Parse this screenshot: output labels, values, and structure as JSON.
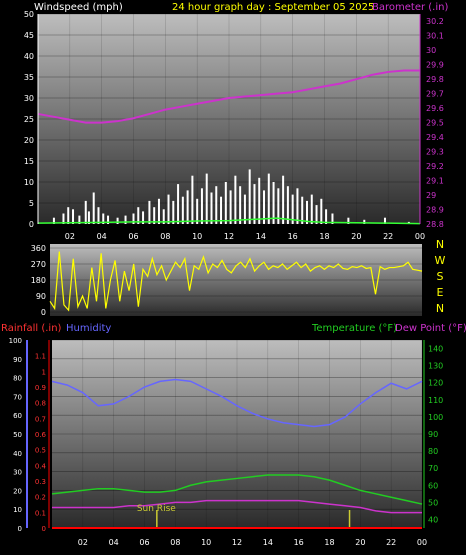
{
  "header": {
    "windspeed_label": "Windspeed (mph)",
    "title": "24 hour graph day : September 05 2025",
    "barometer_label": "Barometer (.in)"
  },
  "direction": {
    "ticks": [
      "360",
      "270",
      "180",
      "90",
      "0"
    ],
    "compass": [
      "N",
      "W",
      "S",
      "E",
      "N"
    ]
  },
  "lower_labels": {
    "rainfall": "Rainfall (.in)",
    "humidity": "Humidity",
    "temperature": "Temperature (°F)",
    "dew_point": "Dew Point (°F)"
  },
  "annotations": {
    "sunrise": "Sun Rise"
  },
  "x_ticks": [
    "02",
    "04",
    "06",
    "08",
    "10",
    "12",
    "14",
    "16",
    "18",
    "20",
    "22",
    "00"
  ],
  "colors": {
    "windspeed": "#ffffff",
    "wind_avg": "#33ff33",
    "barometer": "#cc33cc",
    "direction": "#ffff00",
    "humidity": "#6666ff",
    "temperature": "#22cc22",
    "dew_point": "#cc33cc",
    "rainfall": "#ff0000",
    "sunrise": "#cccc33",
    "title": "#ffff00"
  },
  "chart_data": [
    {
      "type": "bar",
      "name": "windspeed",
      "ylabel": "Windspeed (mph)",
      "ylim": [
        0,
        50
      ],
      "yticks": [
        0,
        5,
        10,
        15,
        20,
        25,
        30,
        35,
        40,
        45,
        50
      ],
      "x_range_hours": [
        0,
        24
      ],
      "gusts": [
        [
          1.0,
          1.5
        ],
        [
          1.6,
          2.5
        ],
        [
          1.9,
          4.0
        ],
        [
          2.2,
          3.5
        ],
        [
          2.6,
          2.0
        ],
        [
          3.0,
          5.5
        ],
        [
          3.2,
          3.0
        ],
        [
          3.5,
          7.5
        ],
        [
          3.8,
          4.0
        ],
        [
          4.1,
          2.5
        ],
        [
          4.4,
          2.0
        ],
        [
          5.0,
          1.5
        ],
        [
          5.5,
          2.0
        ],
        [
          6.0,
          2.5
        ],
        [
          6.3,
          4.0
        ],
        [
          6.6,
          3.0
        ],
        [
          7.0,
          5.5
        ],
        [
          7.3,
          4.0
        ],
        [
          7.6,
          6.0
        ],
        [
          7.9,
          3.5
        ],
        [
          8.2,
          7.0
        ],
        [
          8.5,
          5.5
        ],
        [
          8.8,
          9.5
        ],
        [
          9.1,
          6.5
        ],
        [
          9.4,
          8.0
        ],
        [
          9.7,
          11.5
        ],
        [
          10.0,
          6.0
        ],
        [
          10.3,
          8.5
        ],
        [
          10.6,
          12.0
        ],
        [
          10.9,
          7.5
        ],
        [
          11.2,
          9.0
        ],
        [
          11.5,
          6.5
        ],
        [
          11.8,
          10.0
        ],
        [
          12.1,
          8.0
        ],
        [
          12.4,
          11.5
        ],
        [
          12.7,
          9.0
        ],
        [
          13.0,
          7.0
        ],
        [
          13.3,
          13.0
        ],
        [
          13.6,
          9.5
        ],
        [
          13.9,
          11.0
        ],
        [
          14.2,
          8.0
        ],
        [
          14.5,
          12.0
        ],
        [
          14.8,
          10.0
        ],
        [
          15.1,
          8.5
        ],
        [
          15.4,
          11.5
        ],
        [
          15.7,
          9.0
        ],
        [
          16.0,
          7.0
        ],
        [
          16.3,
          8.5
        ],
        [
          16.6,
          6.5
        ],
        [
          16.9,
          5.5
        ],
        [
          17.2,
          7.0
        ],
        [
          17.5,
          4.5
        ],
        [
          17.8,
          6.0
        ],
        [
          18.1,
          3.5
        ],
        [
          18.5,
          2.5
        ],
        [
          19.5,
          1.5
        ],
        [
          20.5,
          1.0
        ],
        [
          21.8,
          1.5
        ],
        [
          23.3,
          0.5
        ]
      ],
      "average": [
        [
          0,
          0.2
        ],
        [
          2,
          0.3
        ],
        [
          4,
          0.4
        ],
        [
          6,
          0.5
        ],
        [
          8,
          0.5
        ],
        [
          10,
          0.7
        ],
        [
          12,
          0.8
        ],
        [
          13,
          1.0
        ],
        [
          14,
          1.2
        ],
        [
          15,
          1.4
        ],
        [
          16,
          1.0
        ],
        [
          17,
          0.6
        ],
        [
          18,
          0.4
        ],
        [
          20,
          0.3
        ],
        [
          22,
          0.2
        ],
        [
          24,
          0.1
        ]
      ]
    },
    {
      "type": "line",
      "name": "barometer",
      "ylabel": "Barometer (.in)",
      "ylim": [
        28.8,
        30.25
      ],
      "yticks": [
        28.8,
        28.9,
        29,
        29.1,
        29.2,
        29.3,
        29.4,
        29.5,
        29.6,
        29.7,
        29.8,
        29.9,
        30,
        30.1,
        30.2
      ],
      "x": [
        0,
        1,
        2,
        3,
        4,
        5,
        6,
        7,
        8,
        9,
        10,
        11,
        12,
        13,
        14,
        15,
        16,
        17,
        18,
        19,
        20,
        21,
        22,
        23,
        24
      ],
      "y": [
        29.56,
        29.54,
        29.52,
        29.5,
        29.5,
        29.51,
        29.53,
        29.56,
        29.59,
        29.61,
        29.63,
        29.65,
        29.67,
        29.68,
        29.69,
        29.7,
        29.71,
        29.73,
        29.75,
        29.77,
        29.8,
        29.83,
        29.85,
        29.86,
        29.86
      ]
    },
    {
      "type": "line",
      "name": "wind direction",
      "ylim": [
        0,
        360
      ],
      "yticks": [
        0,
        90,
        180,
        270,
        360
      ],
      "x": [
        0,
        0.3,
        0.6,
        0.9,
        1.2,
        1.5,
        1.8,
        2.1,
        2.4,
        2.7,
        3.0,
        3.3,
        3.6,
        3.9,
        4.2,
        4.5,
        4.8,
        5.1,
        5.4,
        5.7,
        6.0,
        6.3,
        6.6,
        6.9,
        7.2,
        7.5,
        7.8,
        8.1,
        8.4,
        8.7,
        9.0,
        9.3,
        9.6,
        9.9,
        10.2,
        10.5,
        10.8,
        11.1,
        11.4,
        11.7,
        12.0,
        12.3,
        12.6,
        12.9,
        13.2,
        13.5,
        13.8,
        14.1,
        14.4,
        14.7,
        15.0,
        15.3,
        15.6,
        15.9,
        16.2,
        16.5,
        16.8,
        17.1,
        17.4,
        17.7,
        18.0,
        18.3,
        18.6,
        18.9,
        19.2,
        19.5,
        19.8,
        20.1,
        20.4,
        20.7,
        21.0,
        21.3,
        21.6,
        21.9,
        22.2,
        22.5,
        22.8,
        23.1,
        23.4,
        23.7,
        24.0
      ],
      "y": [
        60,
        20,
        340,
        40,
        10,
        300,
        30,
        90,
        20,
        250,
        60,
        330,
        20,
        180,
        290,
        60,
        230,
        120,
        270,
        30,
        240,
        200,
        300,
        210,
        260,
        180,
        230,
        280,
        250,
        300,
        120,
        260,
        240,
        310,
        220,
        270,
        250,
        290,
        240,
        220,
        260,
        280,
        250,
        300,
        230,
        260,
        280,
        240,
        260,
        250,
        270,
        240,
        260,
        280,
        250,
        270,
        230,
        250,
        260,
        240,
        260,
        250,
        270,
        245,
        240,
        255,
        250,
        260,
        245,
        250,
        100,
        255,
        240,
        250,
        250,
        255,
        260,
        280,
        240,
        235,
        230
      ]
    },
    {
      "type": "line",
      "name": "humidity / temperature / dew point / rainfall",
      "humidity_ylim": [
        0,
        100
      ],
      "humidity_yticks": [
        0,
        10,
        20,
        30,
        40,
        50,
        60,
        70,
        80,
        90,
        100
      ],
      "rain_ylim": [
        0,
        1.2
      ],
      "rain_yticks": [
        0,
        0.1,
        0.2,
        0.3,
        0.4,
        0.5,
        0.6,
        0.7,
        0.8,
        0.9,
        1,
        1.1
      ],
      "temp_ylim": [
        35,
        145
      ],
      "temp_yticks": [
        40,
        50,
        60,
        70,
        80,
        90,
        100,
        110,
        120,
        130,
        140
      ],
      "x": [
        0,
        1,
        2,
        3,
        4,
        5,
        6,
        7,
        8,
        9,
        10,
        11,
        12,
        13,
        14,
        15,
        16,
        17,
        18,
        19,
        20,
        21,
        22,
        23,
        24
      ],
      "humidity": [
        78,
        76,
        72,
        65,
        66,
        70,
        75,
        78,
        79,
        78,
        74,
        70,
        65,
        61,
        58,
        56,
        55,
        54,
        55,
        59,
        66,
        72,
        77,
        74,
        78
      ],
      "temperature": [
        55,
        56,
        57,
        58,
        58,
        57,
        56,
        56,
        57,
        60,
        62,
        63,
        64,
        65,
        66,
        66,
        66,
        65,
        63,
        60,
        57,
        55,
        53,
        51,
        49
      ],
      "dew_point": [
        47,
        47,
        47,
        47,
        47,
        48,
        48,
        49,
        50,
        50,
        51,
        51,
        51,
        51,
        51,
        51,
        51,
        50,
        49,
        48,
        47,
        45,
        44,
        44,
        44
      ],
      "rainfall": [
        0,
        0,
        0,
        0,
        0,
        0,
        0,
        0,
        0,
        0,
        0,
        0,
        0,
        0,
        0,
        0,
        0,
        0,
        0,
        0,
        0,
        0,
        0,
        0,
        0
      ],
      "sunrise_hour": 6.8,
      "sunset_hour": 19.3
    }
  ]
}
